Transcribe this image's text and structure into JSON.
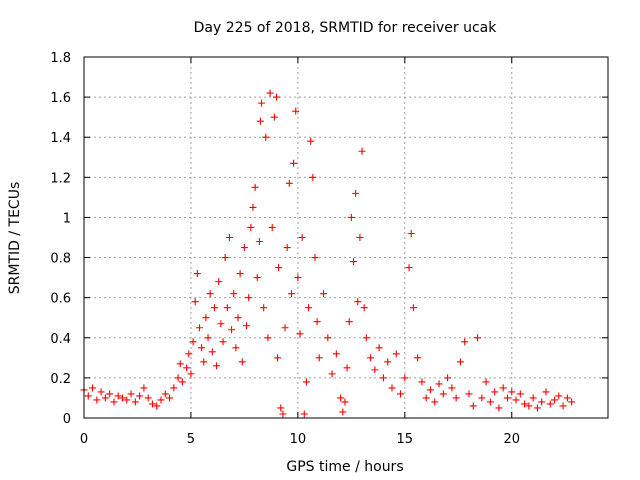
{
  "chart_data": {
    "type": "scatter",
    "title": "Day 225 of 2018, SRMTID for receiver ucak",
    "xlabel": "GPS time / hours",
    "ylabel": "SRMTID / TECUs",
    "xlim": [
      0,
      24.5
    ],
    "ylim": [
      0,
      1.8
    ],
    "xticks": [
      0,
      5,
      10,
      15,
      20
    ],
    "xtick_labels": [
      "0",
      "5",
      "10",
      "15",
      "20"
    ],
    "yticks": [
      0,
      0.2,
      0.4,
      0.6,
      0.8,
      1,
      1.2,
      1.4,
      1.6,
      1.8
    ],
    "ytick_labels": [
      "0",
      "0.2",
      "0.4",
      "0.6",
      "0.8",
      "1",
      "1.2",
      "1.4",
      "1.6",
      "1.8"
    ],
    "grid": true,
    "marker": "+",
    "color": "#ff0000",
    "series": [
      {
        "name": "SRMTID",
        "points": [
          [
            0.0,
            0.14
          ],
          [
            0.2,
            0.11
          ],
          [
            0.4,
            0.15
          ],
          [
            0.6,
            0.09
          ],
          [
            0.8,
            0.13
          ],
          [
            1.0,
            0.1
          ],
          [
            1.2,
            0.12
          ],
          [
            1.4,
            0.08
          ],
          [
            1.6,
            0.11
          ],
          [
            1.8,
            0.1
          ],
          [
            2.0,
            0.09
          ],
          [
            2.2,
            0.12
          ],
          [
            2.4,
            0.08
          ],
          [
            2.6,
            0.11
          ],
          [
            2.8,
            0.15
          ],
          [
            3.0,
            0.1
          ],
          [
            3.2,
            0.07
          ],
          [
            3.4,
            0.06
          ],
          [
            3.6,
            0.09
          ],
          [
            3.8,
            0.12
          ],
          [
            4.0,
            0.1
          ],
          [
            4.2,
            0.15
          ],
          [
            4.4,
            0.2
          ],
          [
            4.5,
            0.27
          ],
          [
            4.6,
            0.18
          ],
          [
            4.8,
            0.25
          ],
          [
            4.9,
            0.32
          ],
          [
            5.0,
            0.22
          ],
          [
            5.1,
            0.38
          ],
          [
            5.2,
            0.58
          ],
          [
            5.3,
            0.72
          ],
          [
            5.4,
            0.45
          ],
          [
            5.5,
            0.35
          ],
          [
            5.6,
            0.28
          ],
          [
            5.7,
            0.5
          ],
          [
            5.8,
            0.4
          ],
          [
            5.9,
            0.62
          ],
          [
            6.0,
            0.33
          ],
          [
            6.1,
            0.55
          ],
          [
            6.2,
            0.26
          ],
          [
            6.3,
            0.68
          ],
          [
            6.4,
            0.47
          ],
          [
            6.5,
            0.38
          ],
          [
            6.6,
            0.8
          ],
          [
            6.7,
            0.55
          ],
          [
            6.8,
            0.9
          ],
          [
            6.9,
            0.44
          ],
          [
            7.0,
            0.62
          ],
          [
            7.1,
            0.35
          ],
          [
            7.2,
            0.5
          ],
          [
            7.3,
            0.72
          ],
          [
            7.4,
            0.28
          ],
          [
            7.5,
            0.85
          ],
          [
            7.6,
            0.46
          ],
          [
            7.7,
            0.6
          ],
          [
            7.8,
            0.95
          ],
          [
            7.9,
            1.05
          ],
          [
            8.0,
            1.15
          ],
          [
            8.1,
            0.7
          ],
          [
            8.2,
            0.88
          ],
          [
            8.25,
            1.48
          ],
          [
            8.3,
            1.57
          ],
          [
            8.4,
            0.55
          ],
          [
            8.5,
            1.4
          ],
          [
            8.6,
            0.4
          ],
          [
            8.7,
            1.62
          ],
          [
            8.8,
            0.95
          ],
          [
            8.9,
            1.5
          ],
          [
            9.0,
            1.6
          ],
          [
            9.05,
            0.3
          ],
          [
            9.1,
            0.75
          ],
          [
            9.2,
            0.05
          ],
          [
            9.3,
            0.02
          ],
          [
            9.4,
            0.45
          ],
          [
            9.5,
            0.85
          ],
          [
            9.6,
            1.17
          ],
          [
            9.7,
            0.62
          ],
          [
            9.8,
            1.27
          ],
          [
            9.9,
            1.53
          ],
          [
            10.0,
            0.7
          ],
          [
            10.1,
            0.42
          ],
          [
            10.2,
            0.9
          ],
          [
            10.3,
            0.02
          ],
          [
            10.4,
            0.18
          ],
          [
            10.5,
            0.55
          ],
          [
            10.6,
            1.38
          ],
          [
            10.7,
            1.2
          ],
          [
            10.8,
            0.8
          ],
          [
            10.9,
            0.48
          ],
          [
            11.0,
            0.3
          ],
          [
            11.2,
            0.62
          ],
          [
            11.4,
            0.4
          ],
          [
            11.6,
            0.22
          ],
          [
            11.8,
            0.32
          ],
          [
            12.0,
            0.1
          ],
          [
            12.1,
            0.03
          ],
          [
            12.2,
            0.08
          ],
          [
            12.3,
            0.25
          ],
          [
            12.4,
            0.48
          ],
          [
            12.5,
            1.0
          ],
          [
            12.6,
            0.78
          ],
          [
            12.7,
            1.12
          ],
          [
            12.8,
            0.58
          ],
          [
            12.9,
            0.9
          ],
          [
            13.0,
            1.33
          ],
          [
            13.1,
            0.55
          ],
          [
            13.2,
            0.4
          ],
          [
            13.4,
            0.3
          ],
          [
            13.6,
            0.24
          ],
          [
            13.8,
            0.35
          ],
          [
            14.0,
            0.2
          ],
          [
            14.2,
            0.28
          ],
          [
            14.4,
            0.15
          ],
          [
            14.6,
            0.32
          ],
          [
            14.8,
            0.12
          ],
          [
            15.0,
            0.2
          ],
          [
            15.2,
            0.75
          ],
          [
            15.3,
            0.92
          ],
          [
            15.4,
            0.55
          ],
          [
            15.6,
            0.3
          ],
          [
            15.8,
            0.18
          ],
          [
            16.0,
            0.1
          ],
          [
            16.2,
            0.14
          ],
          [
            16.4,
            0.08
          ],
          [
            16.6,
            0.17
          ],
          [
            16.8,
            0.12
          ],
          [
            17.0,
            0.2
          ],
          [
            17.2,
            0.15
          ],
          [
            17.4,
            0.1
          ],
          [
            17.6,
            0.28
          ],
          [
            17.8,
            0.38
          ],
          [
            18.0,
            0.12
          ],
          [
            18.2,
            0.06
          ],
          [
            18.4,
            0.4
          ],
          [
            18.6,
            0.1
          ],
          [
            18.8,
            0.18
          ],
          [
            19.0,
            0.08
          ],
          [
            19.2,
            0.13
          ],
          [
            19.4,
            0.05
          ],
          [
            19.6,
            0.15
          ],
          [
            19.8,
            0.1
          ],
          [
            20.0,
            0.13
          ],
          [
            20.2,
            0.09
          ],
          [
            20.4,
            0.12
          ],
          [
            20.6,
            0.07
          ],
          [
            20.8,
            0.06
          ],
          [
            21.0,
            0.1
          ],
          [
            21.2,
            0.05
          ],
          [
            21.4,
            0.08
          ],
          [
            21.6,
            0.13
          ],
          [
            21.8,
            0.07
          ],
          [
            22.0,
            0.09
          ],
          [
            22.2,
            0.11
          ],
          [
            22.4,
            0.06
          ],
          [
            22.6,
            0.1
          ],
          [
            22.8,
            0.08
          ]
        ]
      }
    ]
  }
}
